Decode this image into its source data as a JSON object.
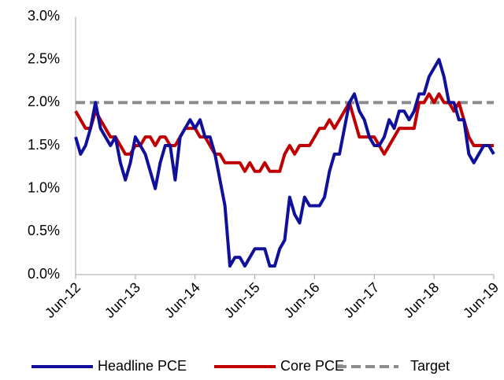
{
  "chart_data": {
    "type": "line",
    "categories": [
      "Jun-12",
      null,
      null,
      null,
      null,
      null,
      null,
      null,
      null,
      null,
      null,
      null,
      "Jun-13",
      null,
      null,
      null,
      null,
      null,
      null,
      null,
      null,
      null,
      null,
      null,
      "Jun-14",
      null,
      null,
      null,
      null,
      null,
      null,
      null,
      null,
      null,
      null,
      null,
      "Jun-15",
      null,
      null,
      null,
      null,
      null,
      null,
      null,
      null,
      null,
      null,
      null,
      "Jun-16",
      null,
      null,
      null,
      null,
      null,
      null,
      null,
      null,
      null,
      null,
      null,
      "Jun-17",
      null,
      null,
      null,
      null,
      null,
      null,
      null,
      null,
      null,
      null,
      null,
      "Jun-18",
      null,
      null,
      null,
      null,
      null,
      null,
      null,
      null,
      null,
      null,
      null,
      "Jun-19"
    ],
    "series": [
      {
        "name": "Headline PCE",
        "color": "#10109a",
        "style": "solid",
        "values": [
          1.6,
          1.4,
          1.5,
          1.7,
          2.0,
          1.7,
          1.6,
          1.5,
          1.6,
          1.3,
          1.1,
          1.3,
          1.6,
          1.5,
          1.4,
          1.2,
          1.0,
          1.3,
          1.5,
          1.5,
          1.1,
          1.6,
          1.7,
          1.8,
          1.7,
          1.8,
          1.6,
          1.6,
          1.4,
          1.1,
          0.8,
          0.1,
          0.2,
          0.2,
          0.1,
          0.2,
          0.3,
          0.3,
          0.3,
          0.1,
          0.1,
          0.3,
          0.4,
          0.9,
          0.7,
          0.6,
          0.9,
          0.8,
          0.8,
          0.8,
          0.9,
          1.2,
          1.4,
          1.4,
          1.7,
          2.0,
          2.1,
          1.9,
          1.8,
          1.6,
          1.5,
          1.5,
          1.6,
          1.8,
          1.7,
          1.9,
          1.9,
          1.8,
          1.9,
          2.1,
          2.1,
          2.3,
          2.4,
          2.5,
          2.3,
          2.0,
          2.0,
          1.8,
          1.8,
          1.4,
          1.3,
          1.4,
          1.5,
          1.5,
          1.4
        ]
      },
      {
        "name": "Core PCE",
        "color": "#c00000",
        "style": "solid",
        "values": [
          1.9,
          1.8,
          1.7,
          1.7,
          1.9,
          1.8,
          1.7,
          1.6,
          1.6,
          1.5,
          1.4,
          1.4,
          1.5,
          1.5,
          1.6,
          1.6,
          1.5,
          1.6,
          1.6,
          1.5,
          1.5,
          1.6,
          1.7,
          1.7,
          1.7,
          1.6,
          1.6,
          1.5,
          1.4,
          1.4,
          1.3,
          1.3,
          1.3,
          1.3,
          1.2,
          1.3,
          1.2,
          1.2,
          1.3,
          1.2,
          1.2,
          1.2,
          1.4,
          1.5,
          1.4,
          1.5,
          1.5,
          1.5,
          1.6,
          1.7,
          1.7,
          1.8,
          1.7,
          1.8,
          1.9,
          2.0,
          1.8,
          1.6,
          1.6,
          1.6,
          1.6,
          1.5,
          1.4,
          1.5,
          1.6,
          1.7,
          1.7,
          1.7,
          1.7,
          2.0,
          2.0,
          2.1,
          2.0,
          2.1,
          2.0,
          2.0,
          1.9,
          2.0,
          1.8,
          1.6,
          1.5,
          1.5,
          1.5,
          1.5,
          1.5
        ]
      },
      {
        "name": "Target",
        "color": "#8c8c8c",
        "style": "dashed",
        "values": [
          2,
          2,
          2,
          2,
          2,
          2,
          2,
          2,
          2,
          2,
          2,
          2,
          2,
          2,
          2,
          2,
          2,
          2,
          2,
          2,
          2,
          2,
          2,
          2,
          2,
          2,
          2,
          2,
          2,
          2,
          2,
          2,
          2,
          2,
          2,
          2,
          2,
          2,
          2,
          2,
          2,
          2,
          2,
          2,
          2,
          2,
          2,
          2,
          2,
          2,
          2,
          2,
          2,
          2,
          2,
          2,
          2,
          2,
          2,
          2,
          2,
          2,
          2,
          2,
          2,
          2,
          2,
          2,
          2,
          2,
          2,
          2,
          2,
          2,
          2,
          2,
          2,
          2,
          2,
          2,
          2,
          2,
          2,
          2,
          2
        ]
      }
    ],
    "ylim": [
      0,
      3
    ],
    "yticks": [
      {
        "value": 0,
        "label": "0.0%"
      },
      {
        "value": 0.5,
        "label": "0.5%"
      },
      {
        "value": 1,
        "label": "1.0%"
      },
      {
        "value": 1.5,
        "label": "1.5%"
      },
      {
        "value": 2,
        "label": "2.0%"
      },
      {
        "value": 2.5,
        "label": "2.5%"
      },
      {
        "value": 3,
        "label": "3.0%"
      }
    ],
    "grid": false,
    "legend": "bottom"
  }
}
